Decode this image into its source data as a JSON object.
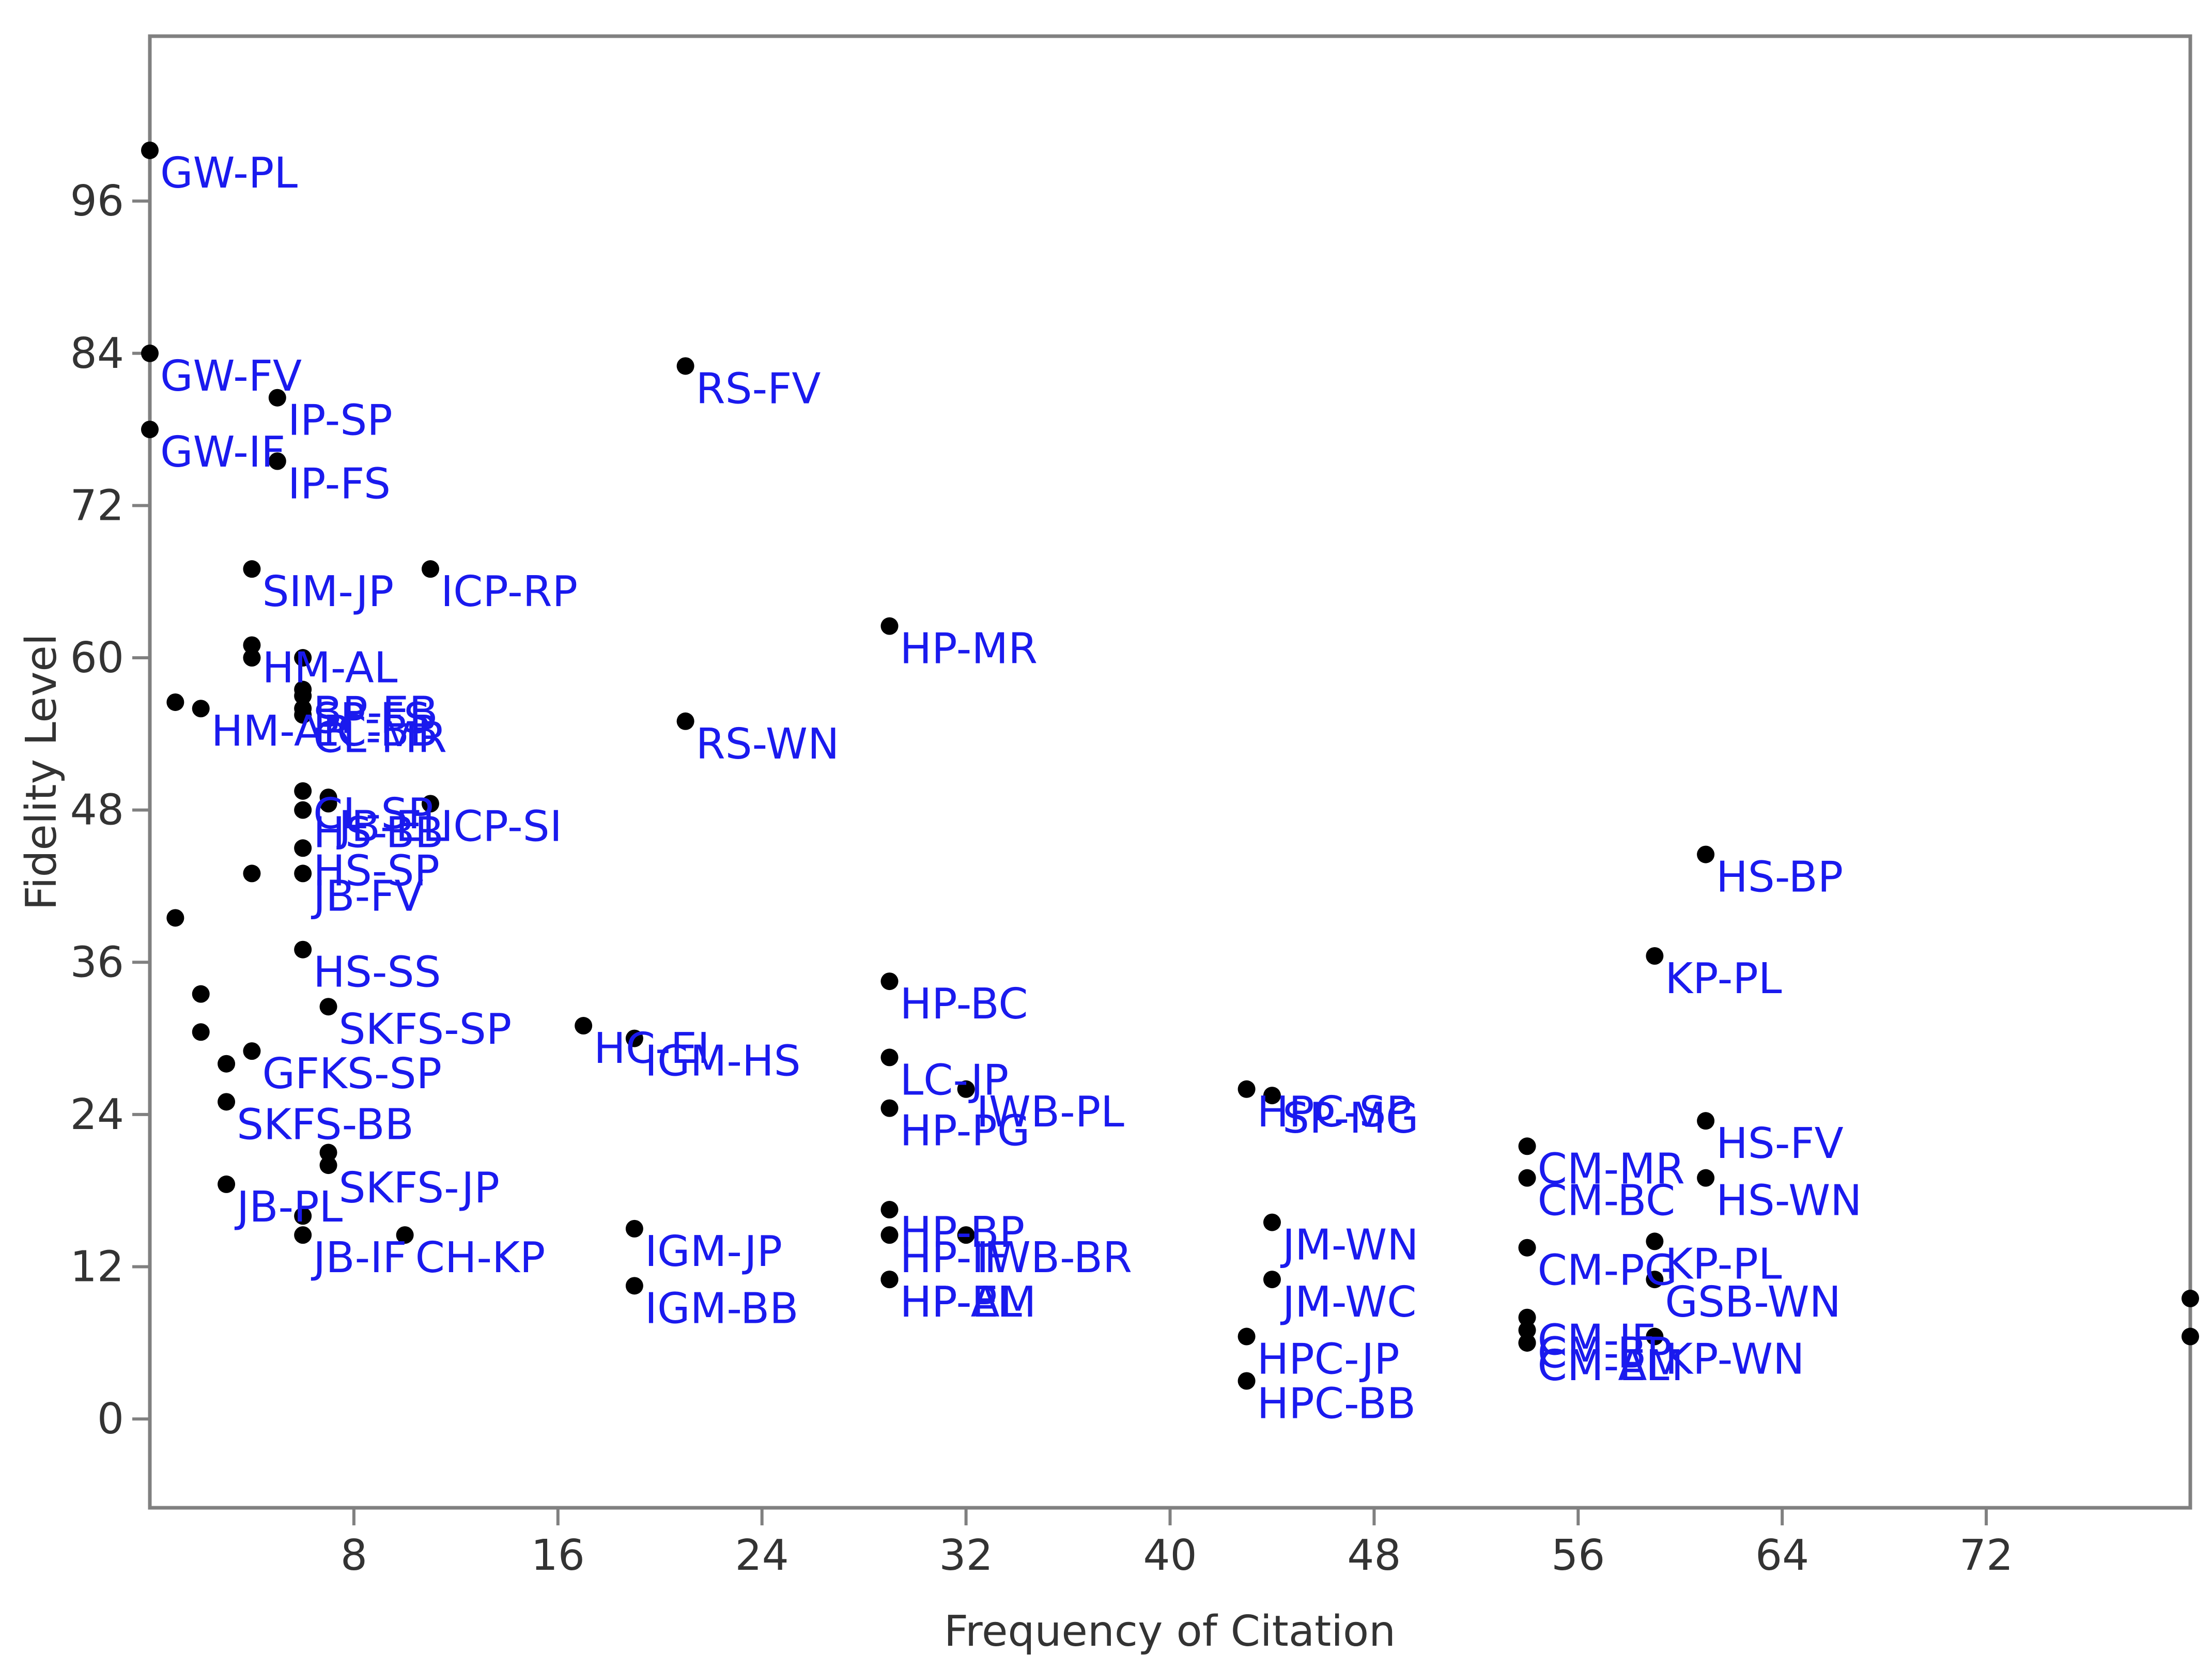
{
  "chart_data": {
    "type": "scatter",
    "title": "",
    "xlabel": "Frequency of Citation",
    "ylabel": "Fidelity Level",
    "xlim": [
      0,
      80
    ],
    "ylim": [
      -7,
      109
    ],
    "xticks": [
      8,
      16,
      24,
      32,
      40,
      48,
      56,
      64,
      72
    ],
    "yticks": [
      0,
      12,
      24,
      36,
      48,
      60,
      72,
      84,
      96
    ],
    "grid": false,
    "points": [
      {
        "x": 0,
        "y": 100,
        "label": "GW-PL"
      },
      {
        "x": 0,
        "y": 84,
        "label": "GW-FV"
      },
      {
        "x": 0,
        "y": 78,
        "label": "GW-IF"
      },
      {
        "x": 5,
        "y": 80.5,
        "label": "IP-SP"
      },
      {
        "x": 5,
        "y": 75.5,
        "label": "IP-FS"
      },
      {
        "x": 21,
        "y": 83,
        "label": "RS-FV"
      },
      {
        "x": 4,
        "y": 67,
        "label": "SIM-JP"
      },
      {
        "x": 11,
        "y": 67,
        "label": "ICP-RP"
      },
      {
        "x": 4,
        "y": 61,
        "label": "HM-AL"
      },
      {
        "x": 4,
        "y": 60,
        "label": ""
      },
      {
        "x": 6,
        "y": 60,
        "label": ""
      },
      {
        "x": 6,
        "y": 57.5,
        "label": "BP-EB"
      },
      {
        "x": 6,
        "y": 57,
        "label": "SP-FS"
      },
      {
        "x": 6,
        "y": 56,
        "label": "LC-BB"
      },
      {
        "x": 6,
        "y": 55.5,
        "label": "CL-MR"
      },
      {
        "x": 1,
        "y": 56.5,
        "label": ""
      },
      {
        "x": 2,
        "y": 56,
        "label": "HM-AR"
      },
      {
        "x": 29,
        "y": 62.5,
        "label": "HP-MR"
      },
      {
        "x": 21,
        "y": 55,
        "label": "RS-WN"
      },
      {
        "x": 6,
        "y": 49.5,
        "label": "CL-SP"
      },
      {
        "x": 7,
        "y": 49,
        "label": ""
      },
      {
        "x": 6,
        "y": 48,
        "label": "HS-BB"
      },
      {
        "x": 7,
        "y": 48.5,
        "label": "JB-EL"
      },
      {
        "x": 11,
        "y": 48.5,
        "label": "ICP-SI"
      },
      {
        "x": 4,
        "y": 43,
        "label": ""
      },
      {
        "x": 6,
        "y": 43,
        "label": "JB-FV"
      },
      {
        "x": 6,
        "y": 45,
        "label": "HS-SP"
      },
      {
        "x": 1,
        "y": 39.5,
        "label": ""
      },
      {
        "x": 6,
        "y": 37,
        "label": "HS-SS"
      },
      {
        "x": 7,
        "y": 32.5,
        "label": "SKFS-SP"
      },
      {
        "x": 17,
        "y": 31,
        "label": "HC-EI"
      },
      {
        "x": 2,
        "y": 33.5,
        "label": ""
      },
      {
        "x": 2,
        "y": 30.5,
        "label": ""
      },
      {
        "x": 4,
        "y": 29,
        "label": "GFKS-SP"
      },
      {
        "x": 3,
        "y": 28,
        "label": ""
      },
      {
        "x": 19,
        "y": 30,
        "label": "IGM-HS"
      },
      {
        "x": 29,
        "y": 34.5,
        "label": "HP-BC"
      },
      {
        "x": 29,
        "y": 28.5,
        "label": "LC-JP"
      },
      {
        "x": 29,
        "y": 24.5,
        "label": "HP-PG"
      },
      {
        "x": 32,
        "y": 26,
        "label": "IWB-PL"
      },
      {
        "x": 43,
        "y": 26,
        "label": "HPC-SP"
      },
      {
        "x": 44,
        "y": 25.5,
        "label": "SP-MG"
      },
      {
        "x": 3,
        "y": 25,
        "label": "SKFS-BB"
      },
      {
        "x": 7,
        "y": 21,
        "label": ""
      },
      {
        "x": 7,
        "y": 20,
        "label": "SKFS-JP"
      },
      {
        "x": 3,
        "y": 18.5,
        "label": "JB-PL"
      },
      {
        "x": 6,
        "y": 16,
        "label": ""
      },
      {
        "x": 6,
        "y": 14.5,
        "label": "JB-IF"
      },
      {
        "x": 10,
        "y": 14.5,
        "label": "CH-KP"
      },
      {
        "x": 19,
        "y": 15,
        "label": "IGM-JP"
      },
      {
        "x": 19,
        "y": 10.5,
        "label": "IGM-BB"
      },
      {
        "x": 29,
        "y": 16.5,
        "label": "HP-BP"
      },
      {
        "x": 29,
        "y": 14.5,
        "label": "HP-IF"
      },
      {
        "x": 29,
        "y": 11,
        "label": "HP-EL"
      },
      {
        "x": 29,
        "y": 11,
        "label": "HP-AM"
      },
      {
        "x": 29,
        "y": 11,
        "label": "HP-PL"
      },
      {
        "x": 32,
        "y": 14.5,
        "label": "IWB-BR"
      },
      {
        "x": 44,
        "y": 15.5,
        "label": "JM-WN"
      },
      {
        "x": 44,
        "y": 11,
        "label": "JM-WC"
      },
      {
        "x": 43,
        "y": 6.5,
        "label": "HPC-JP"
      },
      {
        "x": 43,
        "y": 3,
        "label": "HPC-BB"
      },
      {
        "x": 54,
        "y": 21.5,
        "label": "CM-MR"
      },
      {
        "x": 54,
        "y": 19,
        "label": "CM-BC"
      },
      {
        "x": 54,
        "y": 13.5,
        "label": "CM-PG"
      },
      {
        "x": 54,
        "y": 8,
        "label": "CM-IF"
      },
      {
        "x": 54,
        "y": 7,
        "label": "CM-BP"
      },
      {
        "x": 54,
        "y": 6,
        "label": "CM-EL"
      },
      {
        "x": 54,
        "y": 6,
        "label": "CM-AM"
      },
      {
        "x": 61,
        "y": 44.5,
        "label": "HS-BP"
      },
      {
        "x": 59,
        "y": 36.5,
        "label": "KP-PL"
      },
      {
        "x": 61,
        "y": 23.5,
        "label": "HS-FV"
      },
      {
        "x": 61,
        "y": 19,
        "label": "HS-WN"
      },
      {
        "x": 59,
        "y": 14,
        "label": "KP-PL"
      },
      {
        "x": 59,
        "y": 11,
        "label": "GSB-WN"
      },
      {
        "x": 59,
        "y": 6.5,
        "label": "KP-WN"
      },
      {
        "x": 80,
        "y": 9.5,
        "label": ""
      },
      {
        "x": 80,
        "y": 6.5,
        "label": ""
      }
    ]
  }
}
